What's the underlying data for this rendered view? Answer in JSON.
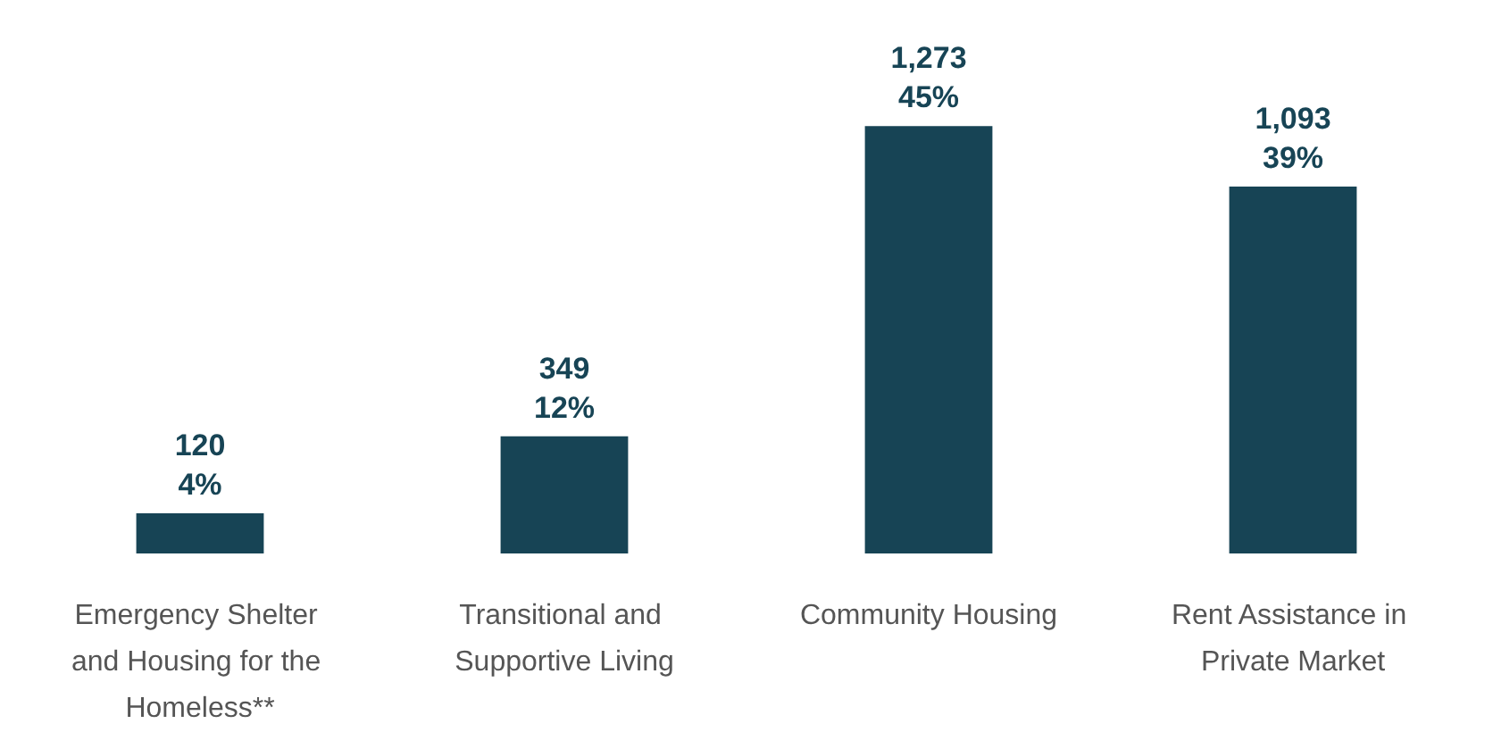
{
  "chart_data": {
    "type": "bar",
    "categories": [
      "Emergency Shelter and Housing for the Homeless**",
      "Transitional and Supportive Living",
      "Community Housing",
      "Rent Assistance in Private Market"
    ],
    "values": [
      120,
      349,
      1273,
      1093
    ],
    "value_labels": [
      "120\n4%",
      "349\n12%",
      "1,273\n45%",
      "1,093\n39%"
    ],
    "color": "#174455"
  }
}
